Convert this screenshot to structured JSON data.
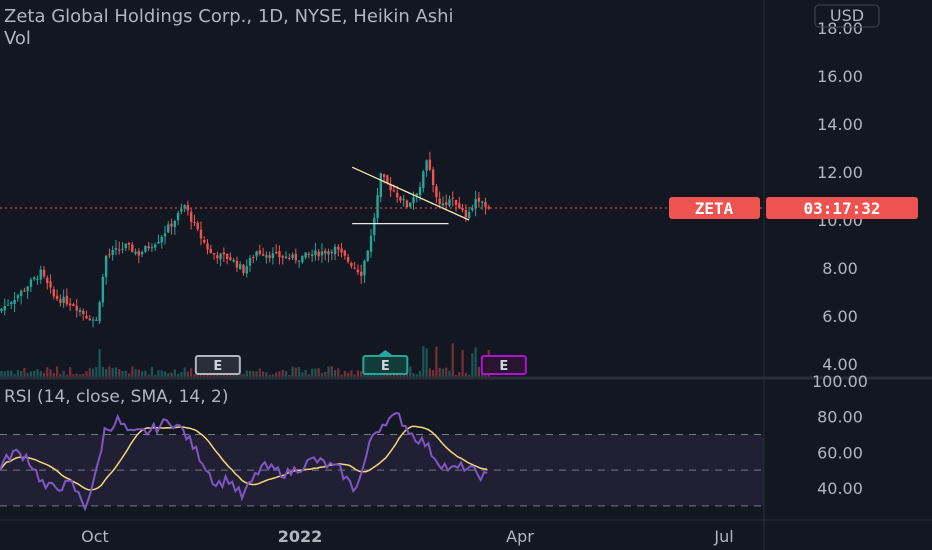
{
  "header": {
    "title": "Zeta Global Holdings Corp., 1D, NYSE, Heikin Ashi",
    "volume_label": "Vol",
    "currency": "USD"
  },
  "price_tag": {
    "symbol": "ZETA",
    "countdown": "03:17:32",
    "value": 10.5
  },
  "rsi": {
    "label": "RSI (14, close, SMA, 14, 2)"
  },
  "earnings_markers": [
    {
      "label": "E",
      "date": "2021-11-10",
      "style": "past"
    },
    {
      "label": "E",
      "date": "2022-02-24",
      "style": "recent"
    },
    {
      "label": "E",
      "date": "2022-05-10",
      "style": "upcoming"
    }
  ],
  "colors": {
    "background": "#131722",
    "up": "#26a69a",
    "down": "#ef5350",
    "rsi_line": "#7e57c2",
    "rsi_ma": "#f5d77a",
    "rsi_band": "#2a2540",
    "trendline": "#f3e6b0",
    "support_line": "#e8e8e8",
    "price_line": "#ef5350",
    "upcoming_earnings": "#b40fd6"
  },
  "chart_data": {
    "type": "candlestick",
    "chart_style": "Heikin Ashi",
    "interval": "1D",
    "price_axis": {
      "ticks": [
        "4.00",
        "6.00",
        "8.00",
        "10.00",
        "12.00",
        "14.00",
        "16.00",
        "18.00"
      ],
      "range": [
        3.5,
        18.5
      ]
    },
    "time_axis": {
      "ticks": [
        "Oct",
        "2022",
        "Apr",
        "Jul"
      ]
    },
    "rsi_axis": {
      "ticks": [
        "40.00",
        "60.00",
        "80.00",
        "100.00"
      ],
      "bands": [
        30,
        50,
        70
      ]
    },
    "price_waypoints": [
      [
        0,
        6.3
      ],
      [
        6,
        7.0
      ],
      [
        12,
        7.8
      ],
      [
        16,
        6.8
      ],
      [
        22,
        6.5
      ],
      [
        26,
        6.0
      ],
      [
        29,
        5.8
      ],
      [
        32,
        8.5
      ],
      [
        38,
        8.9
      ],
      [
        42,
        8.6
      ],
      [
        48,
        9.2
      ],
      [
        53,
        10.0
      ],
      [
        56,
        10.6
      ],
      [
        60,
        9.5
      ],
      [
        64,
        8.6
      ],
      [
        70,
        8.4
      ],
      [
        74,
        7.9
      ],
      [
        78,
        8.7
      ],
      [
        84,
        8.5
      ],
      [
        90,
        8.4
      ],
      [
        96,
        8.6
      ],
      [
        102,
        8.8
      ],
      [
        106,
        8.3
      ],
      [
        110,
        7.8
      ],
      [
        113,
        9.3
      ],
      [
        116,
        11.8
      ],
      [
        120,
        11.2
      ],
      [
        124,
        10.6
      ],
      [
        128,
        11.4
      ],
      [
        130,
        12.4
      ],
      [
        134,
        10.6
      ],
      [
        138,
        10.9
      ],
      [
        142,
        10.2
      ],
      [
        146,
        10.9
      ],
      [
        149,
        10.5
      ]
    ],
    "rsi_waypoints": [
      [
        0,
        52
      ],
      [
        4,
        60
      ],
      [
        8,
        58
      ],
      [
        14,
        40
      ],
      [
        22,
        42
      ],
      [
        26,
        30
      ],
      [
        29,
        45
      ],
      [
        32,
        72
      ],
      [
        36,
        78
      ],
      [
        40,
        70
      ],
      [
        46,
        72
      ],
      [
        52,
        78
      ],
      [
        56,
        72
      ],
      [
        62,
        55
      ],
      [
        66,
        42
      ],
      [
        70,
        45
      ],
      [
        74,
        35
      ],
      [
        80,
        52
      ],
      [
        88,
        48
      ],
      [
        96,
        56
      ],
      [
        104,
        50
      ],
      [
        108,
        40
      ],
      [
        110,
        45
      ],
      [
        114,
        70
      ],
      [
        118,
        78
      ],
      [
        122,
        80
      ],
      [
        126,
        70
      ],
      [
        130,
        65
      ],
      [
        134,
        55
      ],
      [
        138,
        50
      ],
      [
        142,
        52
      ],
      [
        146,
        48
      ],
      [
        149,
        46
      ]
    ],
    "annotations": [
      {
        "type": "trendline",
        "from": [
          "2022-02-03",
          12.2
        ],
        "to": [
          "2022-04-18",
          10.0
        ]
      },
      {
        "type": "support",
        "from": [
          "2022-02-03",
          9.85
        ],
        "to": [
          "2022-04-05",
          9.85
        ]
      },
      {
        "type": "price_line",
        "value": 10.5
      }
    ]
  }
}
